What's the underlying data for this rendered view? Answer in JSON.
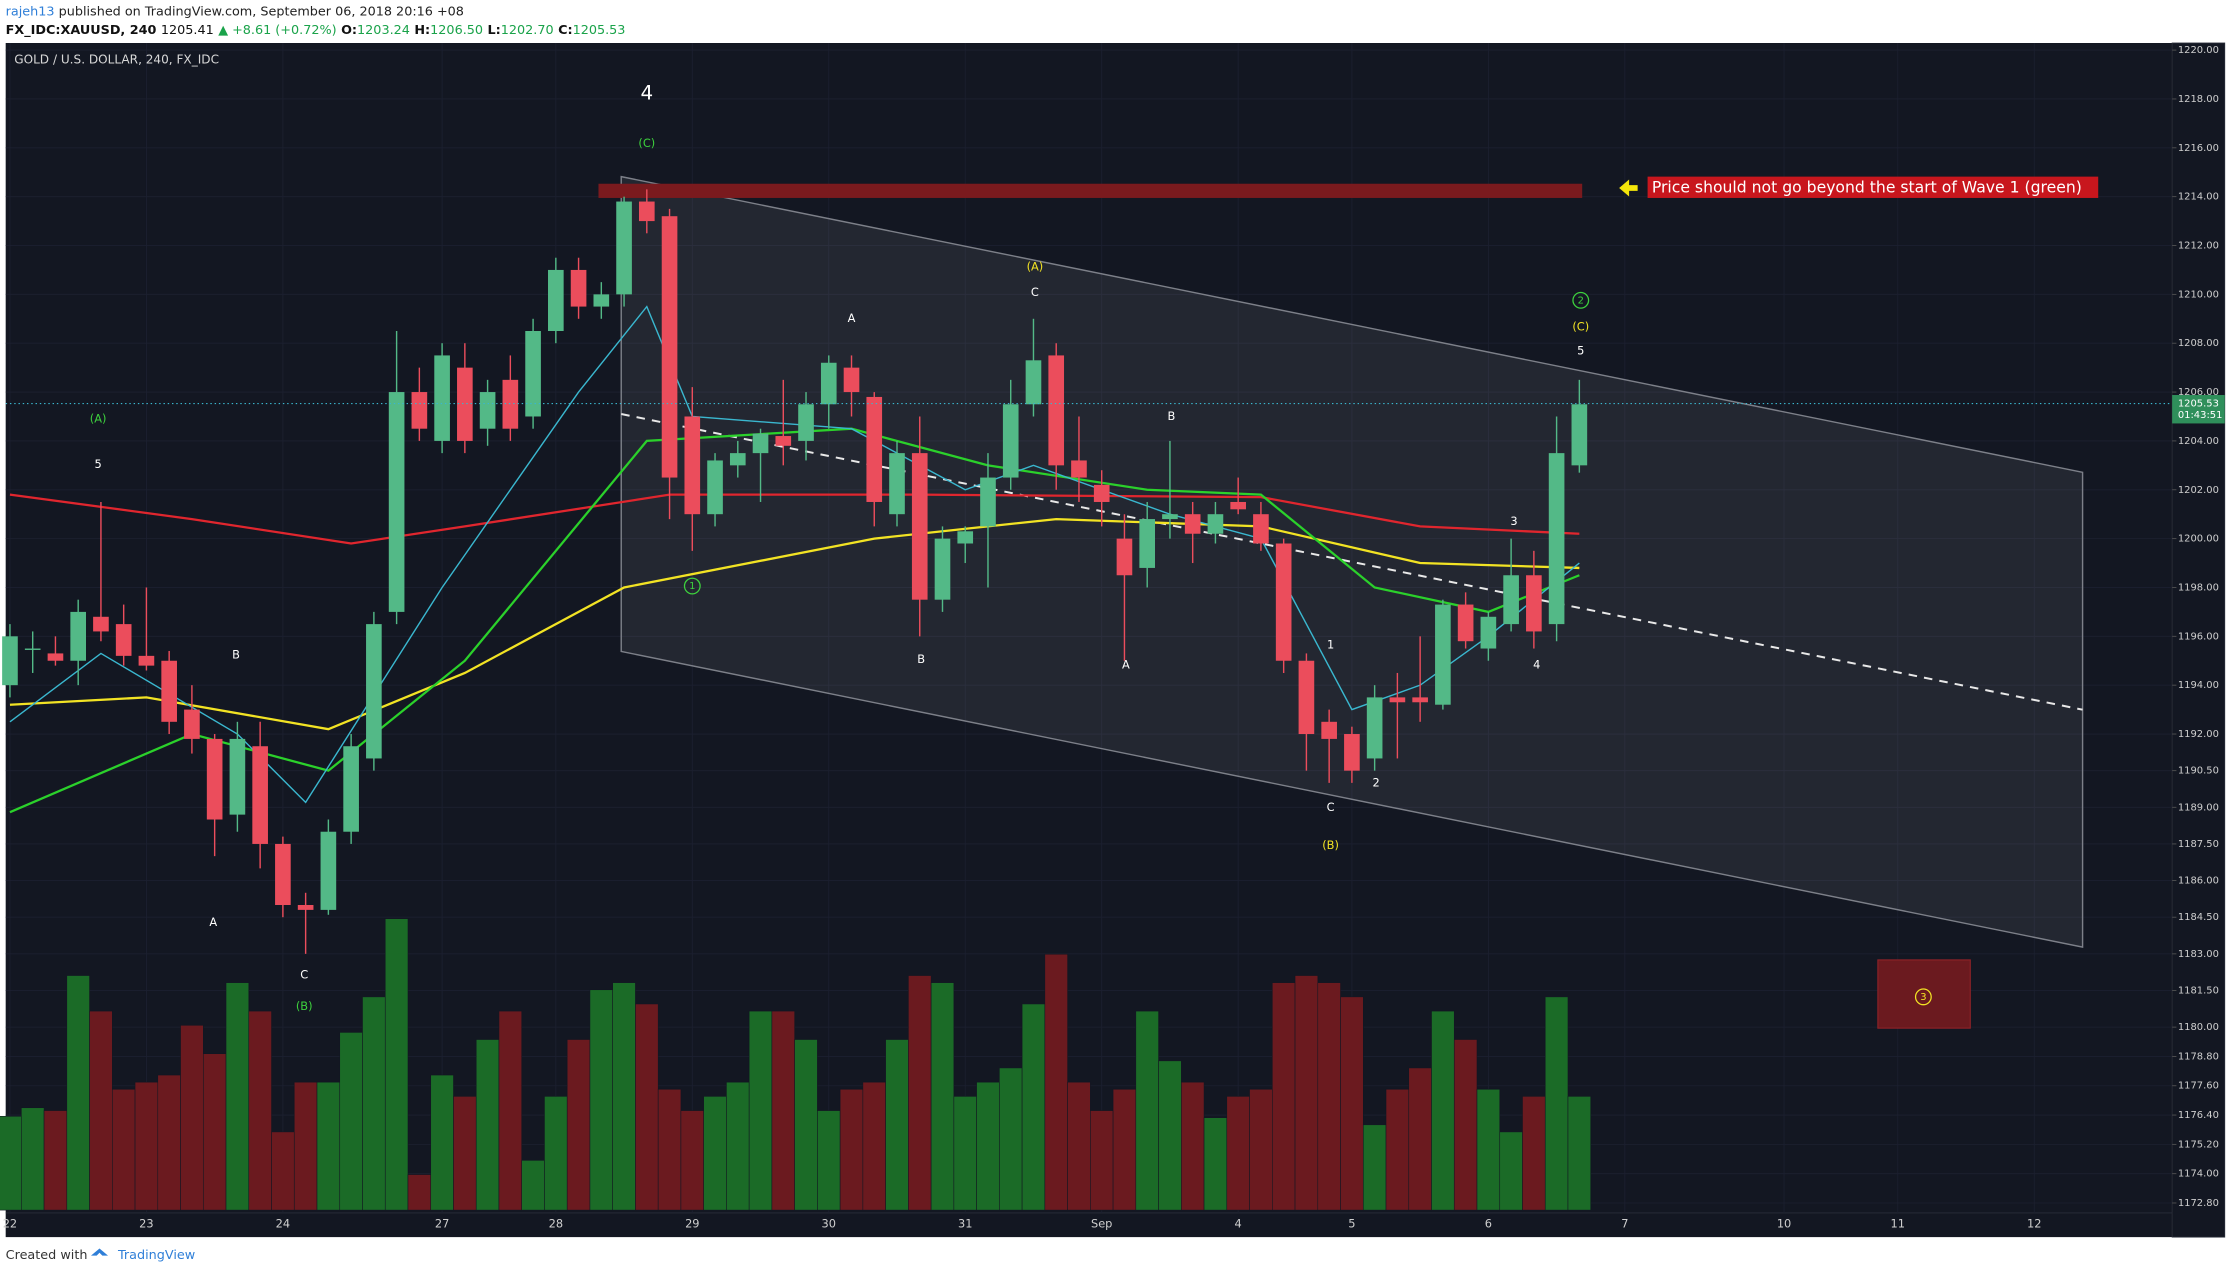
{
  "header": {
    "author": "rajeh13",
    "published": "published on TradingView.com, September 06, 2018 20:16 +08",
    "symbol": "FX_IDC:XAUUSD, 240",
    "last": "1205.41",
    "change": "▲ +8.61 (+0.72%)",
    "ohlc": [
      {
        "label": "O:",
        "value": "1203.24"
      },
      {
        "label": "H:",
        "value": "1206.50"
      },
      {
        "label": "L:",
        "value": "1202.70"
      },
      {
        "label": "C:",
        "value": "1205.53"
      }
    ]
  },
  "footer": {
    "created": "Created with",
    "brand": "TradingView"
  },
  "chart_data": {
    "type": "candlestick",
    "title": "GOLD / U.S. DOLLAR, 240, FX_IDC",
    "up_color": "#53b987",
    "down_color": "#eb4d5c",
    "volume_up_color": "#1b6b27",
    "volume_down_color": "#6b1a1f",
    "open": [
      1194.0,
      1195.5,
      1195.3,
      1195.0,
      1196.8,
      1196.5,
      1195.2,
      1195.0,
      1193.0,
      1191.8,
      1188.7,
      1191.5,
      1187.5,
      1185.0,
      1184.8,
      1188.0,
      1191.0,
      1197.0,
      1206.0,
      1204.0,
      1207.0,
      1204.5,
      1206.5,
      1205.0,
      1208.5,
      1211.0,
      1209.5,
      1210.0,
      1213.8,
      1213.2,
      1205.0,
      1201.0,
      1203.0,
      1203.5,
      1204.2,
      1204.0,
      1205.5,
      1207.0,
      1205.8,
      1201.0,
      1203.5,
      1197.5,
      1199.8,
      1200.5,
      1202.5,
      1205.5,
      1207.5,
      1203.2,
      1202.2,
      1200.0,
      1198.8,
      1200.8,
      1201.0,
      1200.2,
      1201.5,
      1201.0,
      1199.8,
      1195.0,
      1192.5,
      1192.0,
      1191.0,
      1193.5,
      1193.5,
      1193.2,
      1197.3,
      1195.5,
      1196.5,
      1198.5,
      1196.5,
      1203.0
    ],
    "high": [
      1196.5,
      1196.2,
      1196.0,
      1197.5,
      1201.5,
      1197.3,
      1198.0,
      1195.4,
      1194.0,
      1192.0,
      1192.5,
      1192.5,
      1187.8,
      1185.5,
      1188.5,
      1192.0,
      1197.0,
      1208.5,
      1207.0,
      1208.0,
      1208.0,
      1206.5,
      1207.5,
      1209.0,
      1211.5,
      1211.5,
      1210.5,
      1214.0,
      1214.3,
      1213.5,
      1206.2,
      1203.5,
      1204.0,
      1204.5,
      1206.5,
      1206.0,
      1207.5,
      1207.5,
      1206.0,
      1204.0,
      1205.0,
      1200.5,
      1200.5,
      1203.5,
      1206.5,
      1209.0,
      1208.0,
      1205.0,
      1202.8,
      1201.0,
      1201.5,
      1204.0,
      1201.5,
      1201.5,
      1202.5,
      1201.5,
      1200.0,
      1195.3,
      1193.0,
      1192.3,
      1194.0,
      1194.5,
      1196.0,
      1197.5,
      1197.8,
      1197.0,
      1200.0,
      1199.5,
      1205.0,
      1206.5
    ],
    "low": [
      1193.5,
      1194.5,
      1194.8,
      1194.0,
      1195.8,
      1194.8,
      1194.6,
      1192.0,
      1191.2,
      1187.0,
      1188.0,
      1186.5,
      1184.5,
      1183.0,
      1184.6,
      1187.5,
      1190.5,
      1196.5,
      1204.0,
      1203.5,
      1203.5,
      1203.8,
      1204.0,
      1204.5,
      1208.0,
      1209.0,
      1209.0,
      1209.5,
      1212.5,
      1200.8,
      1199.5,
      1200.5,
      1202.5,
      1201.5,
      1203.0,
      1203.2,
      1204.5,
      1205.0,
      1200.5,
      1200.5,
      1196.0,
      1197.0,
      1199.0,
      1198.0,
      1202.0,
      1205.0,
      1202.0,
      1201.5,
      1200.5,
      1195.0,
      1198.0,
      1200.0,
      1199.0,
      1199.8,
      1201.0,
      1199.5,
      1194.5,
      1190.5,
      1190.0,
      1190.0,
      1190.5,
      1191.0,
      1192.5,
      1193.0,
      1195.5,
      1195.0,
      1196.2,
      1195.5,
      1195.8,
      1202.7
    ],
    "close": [
      1196.0,
      1195.5,
      1195.0,
      1197.0,
      1196.2,
      1195.2,
      1194.8,
      1192.5,
      1191.8,
      1188.5,
      1191.8,
      1187.5,
      1185.0,
      1184.8,
      1188.0,
      1191.5,
      1196.5,
      1206.0,
      1204.5,
      1207.5,
      1204.0,
      1206.0,
      1204.5,
      1208.5,
      1211.0,
      1209.5,
      1210.0,
      1213.8,
      1213.0,
      1202.5,
      1201.0,
      1203.2,
      1203.5,
      1204.3,
      1203.8,
      1205.5,
      1207.2,
      1206.0,
      1201.5,
      1203.5,
      1197.5,
      1200.0,
      1200.3,
      1202.5,
      1205.5,
      1207.3,
      1203.0,
      1202.5,
      1201.5,
      1198.5,
      1200.8,
      1201.0,
      1200.2,
      1201.0,
      1201.2,
      1199.8,
      1195.0,
      1192.0,
      1191.8,
      1190.5,
      1193.5,
      1193.3,
      1193.3,
      1197.3,
      1195.8,
      1196.8,
      1198.5,
      1196.2,
      1203.5,
      1205.5
    ],
    "volume": [
      66,
      72,
      70,
      165,
      140,
      85,
      90,
      95,
      130,
      110,
      160,
      140,
      55,
      90,
      90,
      125,
      150,
      205,
      25,
      95,
      80,
      120,
      140,
      35,
      80,
      120,
      155,
      160,
      145,
      85,
      70,
      80,
      90,
      140,
      140,
      120,
      70,
      85,
      90,
      120,
      165,
      160,
      80,
      90,
      100,
      145,
      180,
      90,
      70,
      85,
      140,
      105,
      90,
      65,
      80,
      85,
      160,
      165,
      160,
      150,
      60,
      85,
      100,
      140,
      120,
      85,
      55,
      80,
      150,
      80
    ],
    "lines": [
      {
        "color": "#e0262e",
        "x": [
          0,
          8,
          15,
          20,
          29,
          40,
          55,
          62,
          69
        ],
        "values": [
          1201.8,
          1200.8,
          1199.8,
          1200.5,
          1201.8,
          1201.8,
          1201.7,
          1200.5,
          1200.2
        ]
      },
      {
        "color": "#f2e324",
        "x": [
          0,
          6,
          14,
          20,
          27,
          38,
          46,
          55,
          62,
          69
        ],
        "values": [
          1193.2,
          1193.5,
          1192.2,
          1194.5,
          1198.0,
          1200.0,
          1200.8,
          1200.5,
          1199.0,
          1198.8
        ]
      },
      {
        "color": "#2bd12b",
        "x": [
          0,
          8,
          14,
          20,
          28,
          37,
          43,
          50,
          55,
          60,
          65,
          69
        ],
        "values": [
          1188.8,
          1192.0,
          1190.5,
          1195.0,
          1204.0,
          1204.5,
          1203.0,
          1202.0,
          1201.8,
          1198.0,
          1197.0,
          1198.5
        ]
      },
      {
        "color": "#3ab7cf",
        "x": [
          0,
          4,
          10,
          13,
          19,
          25,
          28,
          30,
          37,
          42,
          45,
          51,
          55,
          59,
          62,
          65,
          69
        ],
        "values": [
          1192.5,
          1195.3,
          1192.0,
          1189.2,
          1198.0,
          1206.0,
          1209.5,
          1205.0,
          1204.5,
          1202.0,
          1203.0,
          1201.0,
          1200.0,
          1193.0,
          1194.0,
          1196.0,
          1199.0
        ]
      }
    ],
    "ylim": [
      1172.8,
      1220.0
    ],
    "yticks": [
      {
        "value": 1220,
        "label": "1220.00"
      },
      {
        "value": 1218,
        "label": "1218.00"
      },
      {
        "value": 1216,
        "label": "1216.00"
      },
      {
        "value": 1214,
        "label": "1214.00"
      },
      {
        "value": 1212,
        "label": "1212.00"
      },
      {
        "value": 1210,
        "label": "1210.00"
      },
      {
        "value": 1208,
        "label": "1208.00"
      },
      {
        "value": 1206,
        "label": "1206.00"
      },
      {
        "value": 1204,
        "label": "1204.00"
      },
      {
        "value": 1202,
        "label": "1202.00"
      },
      {
        "value": 1200,
        "label": "1200.00"
      },
      {
        "value": 1198,
        "label": "1198.00"
      },
      {
        "value": 1196,
        "label": "1196.00"
      },
      {
        "value": 1194,
        "label": "1194.00"
      },
      {
        "value": 1192,
        "label": "1192.00"
      },
      {
        "value": 1190.5,
        "label": "1190.50"
      },
      {
        "value": 1189,
        "label": "1189.00"
      },
      {
        "value": 1187.5,
        "label": "1187.50"
      },
      {
        "value": 1186,
        "label": "1186.00"
      },
      {
        "value": 1184.5,
        "label": "1184.50"
      },
      {
        "value": 1183,
        "label": "1183.00"
      },
      {
        "value": 1181.5,
        "label": "1181.50"
      },
      {
        "value": 1180,
        "label": "1180.00"
      },
      {
        "value": 1178.8,
        "label": "1178.80"
      },
      {
        "value": 1177.6,
        "label": "1177.60"
      },
      {
        "value": 1176.4,
        "label": "1176.40"
      },
      {
        "value": 1175.2,
        "label": "1175.20"
      },
      {
        "value": 1174,
        "label": "1174.00"
      },
      {
        "value": 1172.8,
        "label": "1172.80"
      }
    ],
    "xticks": [
      {
        "value": 0,
        "label": "22"
      },
      {
        "value": 6,
        "label": "23"
      },
      {
        "value": 12,
        "label": "24"
      },
      {
        "value": 19,
        "label": "27"
      },
      {
        "value": 24,
        "label": "28"
      },
      {
        "value": 30,
        "label": "29"
      },
      {
        "value": 36,
        "label": "30"
      },
      {
        "value": 42,
        "label": "31"
      },
      {
        "value": 48,
        "label": "Sep"
      },
      {
        "value": 54,
        "label": "4"
      },
      {
        "value": 59,
        "label": "5"
      },
      {
        "value": 65,
        "label": "6"
      },
      {
        "value": 71,
        "label": "7"
      },
      {
        "value": 78,
        "label": "10"
      },
      {
        "value": 83,
        "label": "11"
      },
      {
        "value": 89,
        "label": "12"
      }
    ],
    "last_price": {
      "value": 1205.53,
      "label": "1205.53",
      "countdown": "01:43:51"
    },
    "note": "Price should not go beyond the start of Wave 1 (green)",
    "annotations": [
      "4",
      "(C)",
      "(A)",
      "5",
      "B",
      "A",
      "C",
      "(B)",
      "1",
      "A",
      "(A)",
      "C",
      "B",
      "B",
      "A",
      "1",
      "2",
      "C",
      "(B)",
      "3",
      "4",
      "2",
      "(C)",
      "5",
      "3"
    ],
    "grid": true
  }
}
